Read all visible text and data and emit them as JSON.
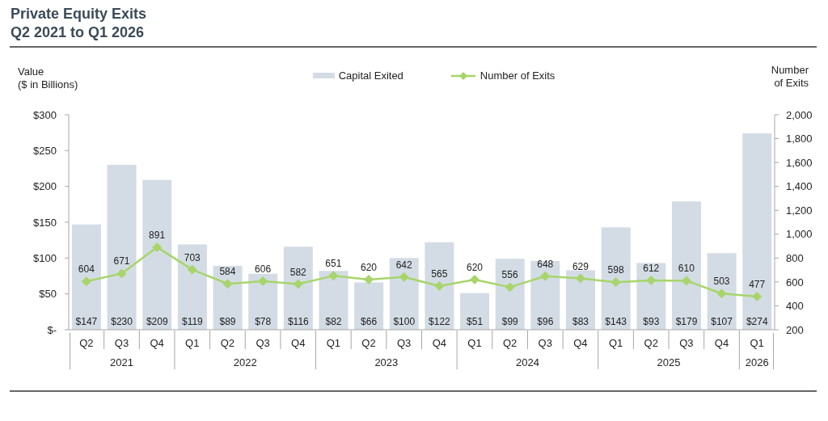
{
  "chart_data": {
    "type": "bar",
    "title": "Private Equity Exits",
    "subtitle": "Q2 2021 to Q1 2026",
    "ylabel": "Value\n($ in Billions)",
    "y2label": "Number\nof Exits",
    "categories": [
      "Q2",
      "Q3",
      "Q4",
      "Q1",
      "Q2",
      "Q3",
      "Q4",
      "Q1",
      "Q2",
      "Q3",
      "Q4",
      "Q1",
      "Q2",
      "Q3",
      "Q4",
      "Q1",
      "Q2",
      "Q3",
      "Q4",
      "Q1"
    ],
    "annotations": [
      "2021",
      "2022",
      "2023",
      "2024",
      "2025",
      "2026"
    ],
    "series": [
      {
        "name": "Capital Exited",
        "color": "#d3dce4",
        "values": [
          147,
          230,
          209,
          119,
          89,
          78,
          116,
          82,
          66,
          100,
          122,
          51,
          99,
          96,
          83,
          143,
          93,
          179,
          107,
          274
        ],
        "value_labels": [
          "$147",
          "$230",
          "$209",
          "$119",
          "$89",
          "$78",
          "$116",
          "$82",
          "$66",
          "$100",
          "$122",
          "$51",
          "$99",
          "$96",
          "$83",
          "$143",
          "$93",
          "$179",
          "$107",
          "$274"
        ]
      },
      {
        "name": "Number of Exits",
        "type": "line",
        "axis": "y2",
        "color": "#a7d56b",
        "values": [
          604,
          671,
          891,
          703,
          584,
          606,
          582,
          651,
          620,
          642,
          565,
          620,
          556,
          648,
          629,
          598,
          612,
          610,
          503,
          477
        ],
        "value_labels": [
          "604",
          "671",
          "891",
          "703",
          "584",
          "606",
          "582",
          "651",
          "620",
          "642",
          "565",
          "620",
          "556",
          "648",
          "629",
          "598",
          "612",
          "610",
          "503",
          "477"
        ]
      }
    ],
    "ylim": [
      0,
      300
    ],
    "yticks": [
      {
        "value": 0,
        "label": "$-"
      },
      {
        "value": 50,
        "label": "$50"
      },
      {
        "value": 100,
        "label": "$100"
      },
      {
        "value": 150,
        "label": "$150"
      },
      {
        "value": 200,
        "label": "$200"
      },
      {
        "value": 250,
        "label": "$250"
      },
      {
        "value": 300,
        "label": "$300"
      }
    ],
    "y2lim": [
      200,
      2000
    ],
    "y2ticks": [
      200,
      400,
      600,
      800,
      {
        "value": 1000,
        "label": "1,000"
      },
      {
        "value": 1200,
        "label": "1,200"
      },
      {
        "value": 1400,
        "label": "1,400"
      },
      {
        "value": 1600,
        "label": "1,600"
      },
      {
        "value": 1800,
        "label": "1,800"
      },
      {
        "value": 2000,
        "label": "2,000"
      }
    ],
    "legend": "top",
    "marker": "diamond"
  }
}
